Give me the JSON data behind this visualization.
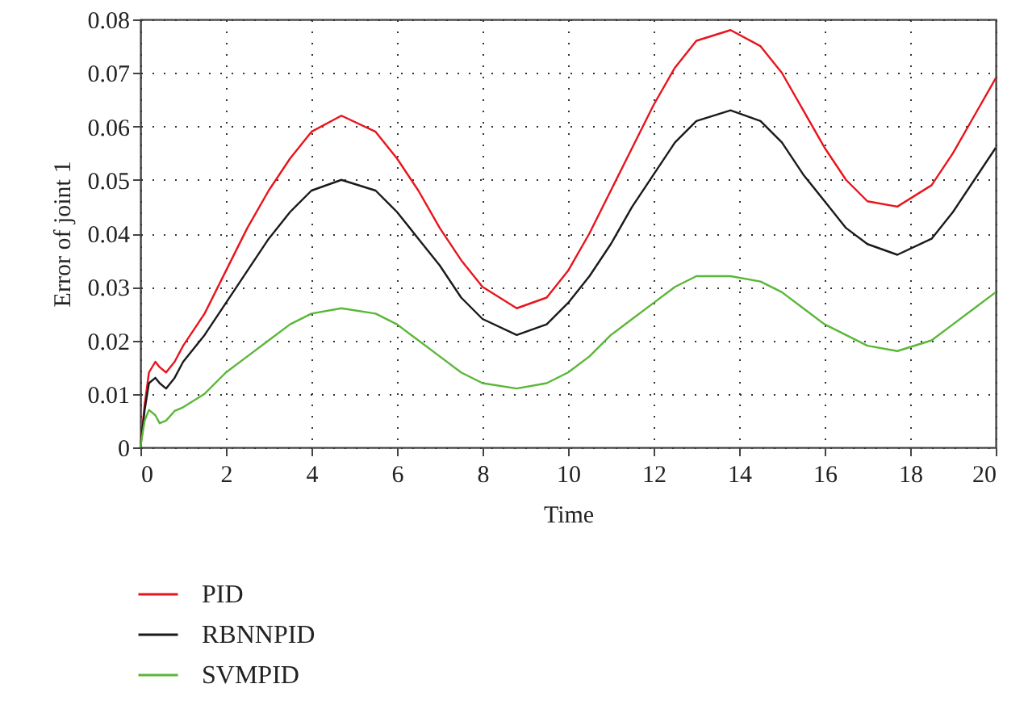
{
  "chart_data": {
    "type": "line",
    "xlabel": "Time",
    "ylabel": "Error of joint 1",
    "x": [
      0,
      0.1,
      0.2,
      0.35,
      0.45,
      0.6,
      0.8,
      1,
      1.5,
      2,
      2.5,
      3,
      3.5,
      4,
      4.7,
      5.5,
      6,
      6.5,
      7,
      7.5,
      8,
      8.8,
      9.5,
      10,
      10.5,
      11,
      11.5,
      12,
      12.5,
      13,
      13.8,
      14.5,
      15,
      15.5,
      16,
      16.5,
      17,
      17.7,
      18.5,
      19,
      19.5,
      20
    ],
    "series": [
      {
        "name": "PID",
        "color": "#e8141c",
        "values": [
          0,
          0.008,
          0.014,
          0.016,
          0.015,
          0.014,
          0.016,
          0.019,
          0.025,
          0.033,
          0.041,
          0.048,
          0.054,
          0.059,
          0.062,
          0.059,
          0.054,
          0.048,
          0.041,
          0.035,
          0.03,
          0.026,
          0.028,
          0.033,
          0.04,
          0.048,
          0.056,
          0.064,
          0.071,
          0.076,
          0.078,
          0.075,
          0.07,
          0.063,
          0.056,
          0.05,
          0.046,
          0.045,
          0.049,
          0.055,
          0.062,
          0.069
        ]
      },
      {
        "name": "RBNNPID",
        "color": "#1a1a1a",
        "values": [
          0,
          0.007,
          0.012,
          0.013,
          0.012,
          0.011,
          0.013,
          0.016,
          0.021,
          0.027,
          0.033,
          0.039,
          0.044,
          0.048,
          0.05,
          0.048,
          0.044,
          0.039,
          0.034,
          0.028,
          0.024,
          0.021,
          0.023,
          0.027,
          0.032,
          0.038,
          0.045,
          0.051,
          0.057,
          0.061,
          0.063,
          0.061,
          0.057,
          0.051,
          0.046,
          0.041,
          0.038,
          0.036,
          0.039,
          0.044,
          0.05,
          0.056
        ]
      },
      {
        "name": "SVMPID",
        "color": "#5ab738",
        "values": [
          0,
          0.005,
          0.007,
          0.006,
          0.0045,
          0.005,
          0.0068,
          0.0075,
          0.01,
          0.014,
          0.017,
          0.02,
          0.023,
          0.025,
          0.026,
          0.025,
          0.023,
          0.02,
          0.017,
          0.014,
          0.012,
          0.011,
          0.012,
          0.014,
          0.017,
          0.021,
          0.024,
          0.027,
          0.03,
          0.032,
          0.032,
          0.031,
          0.029,
          0.026,
          0.023,
          0.021,
          0.019,
          0.018,
          0.02,
          0.023,
          0.026,
          0.029
        ]
      }
    ],
    "xlim": [
      0,
      20
    ],
    "xticks": [
      0,
      2,
      4,
      6,
      8,
      10,
      12,
      14,
      16,
      18,
      20
    ],
    "ylim": [
      0,
      0.08
    ],
    "yticks": [
      0,
      0.01,
      0.02,
      0.03,
      0.04,
      0.05,
      0.06,
      0.07,
      0.08
    ],
    "grid": true,
    "legend": "bottom left",
    "line_style": "solid",
    "marker": "none"
  }
}
